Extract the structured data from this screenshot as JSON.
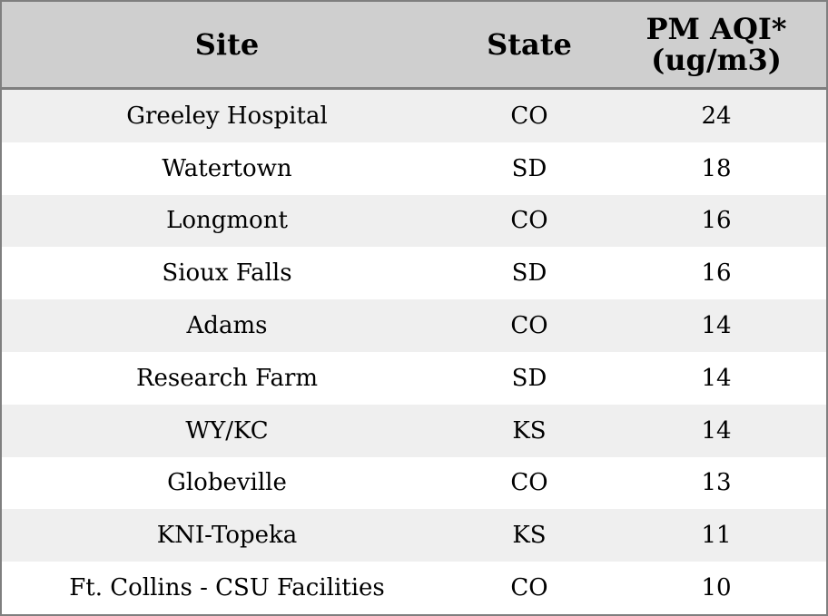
{
  "table": {
    "headers": {
      "site": "Site",
      "state": "State",
      "pm_line1": "PM AQI*",
      "pm_line2": "(ug/m3)"
    },
    "rows": [
      {
        "site": "Greeley Hospital",
        "state": "CO",
        "pm": "24"
      },
      {
        "site": "Watertown",
        "state": "SD",
        "pm": "18"
      },
      {
        "site": "Longmont",
        "state": "CO",
        "pm": "16"
      },
      {
        "site": "Sioux Falls",
        "state": "SD",
        "pm": "16"
      },
      {
        "site": "Adams",
        "state": "CO",
        "pm": "14"
      },
      {
        "site": "Research Farm",
        "state": "SD",
        "pm": "14"
      },
      {
        "site": "WY/KC",
        "state": "KS",
        "pm": "14"
      },
      {
        "site": "Globeville",
        "state": "CO",
        "pm": "13"
      },
      {
        "site": "KNI-Topeka",
        "state": "KS",
        "pm": "11"
      },
      {
        "site": "Ft. Collins - CSU Facilities",
        "state": "CO",
        "pm": "10"
      }
    ]
  }
}
